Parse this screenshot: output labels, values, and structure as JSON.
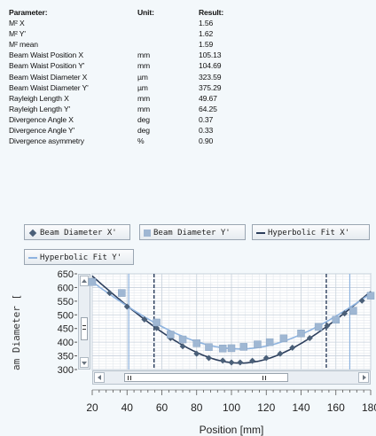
{
  "results_table": {
    "headers": {
      "parameter": "Parameter:",
      "unit": "Unit:",
      "result": "Result:"
    },
    "rows": [
      {
        "parameter": "M² X",
        "unit": "",
        "result": "1.56"
      },
      {
        "parameter": "M² Y'",
        "unit": "",
        "result": "1.62"
      },
      {
        "parameter": "M² mean",
        "unit": "",
        "result": "1.59"
      },
      {
        "parameter": "Beam Waist Position X",
        "unit": "mm",
        "result": "105.13"
      },
      {
        "parameter": "Beam Waist Position Y'",
        "unit": "mm",
        "result": "104.69"
      },
      {
        "parameter": "Beam Waist Diameter X",
        "unit": "µm",
        "result": "323.59"
      },
      {
        "parameter": "Beam Waist Diameter Y'",
        "unit": "µm",
        "result": "375.29"
      },
      {
        "parameter": "Rayleigh Length X",
        "unit": "mm",
        "result": "49.67"
      },
      {
        "parameter": "Rayleigh Length Y'",
        "unit": "mm",
        "result": "64.25"
      },
      {
        "parameter": "Divergence Angle X",
        "unit": "deg",
        "result": "0.37"
      },
      {
        "parameter": "Divergence Angle Y'",
        "unit": "deg",
        "result": "0.33"
      },
      {
        "parameter": "Divergence asymmetry",
        "unit": "%",
        "result": "0.90"
      }
    ]
  },
  "legend": {
    "beam_x": "Beam Diameter X'",
    "beam_y": "Beam Diameter Y'",
    "fit_x": "Hyperbolic Fit X'",
    "fit_y": "Hyperbolic Fit Y'"
  },
  "chart_data": {
    "type": "scatter",
    "xlabel": "Position [mm]",
    "ylabel": "am Diameter [",
    "xlim": [
      20,
      180
    ],
    "ylim": [
      300,
      650
    ],
    "x_ticks": [
      20,
      40,
      60,
      80,
      100,
      120,
      140,
      160,
      180
    ],
    "y_ticks": [
      300,
      350,
      400,
      450,
      500,
      550,
      600,
      650
    ],
    "grid": true,
    "legend_position": "top",
    "series": [
      {
        "name": "Beam Diameter X'",
        "marker": "diamond",
        "color": "#4a5f78",
        "x": [
          20,
          30,
          40,
          50,
          57,
          65,
          72,
          80,
          87,
          95,
          100,
          105,
          112,
          120,
          128,
          135,
          145,
          155,
          165,
          175,
          180
        ],
        "y": [
          625,
          580,
          530,
          483,
          452,
          415,
          385,
          358,
          342,
          333,
          326,
          326,
          332,
          342,
          358,
          380,
          415,
          460,
          505,
          552,
          575
        ]
      },
      {
        "name": "Beam Diameter Y'",
        "marker": "square",
        "color": "#9fb7d3",
        "x": [
          20,
          37,
          57,
          65,
          72,
          80,
          87,
          95,
          100,
          107,
          115,
          122,
          130,
          140,
          150,
          160,
          170,
          180
        ],
        "y": [
          620,
          580,
          472,
          428,
          410,
          396,
          382,
          377,
          378,
          383,
          392,
          400,
          414,
          432,
          456,
          482,
          515,
          570
        ]
      }
    ],
    "fits": [
      {
        "name": "Hyperbolic Fit X'",
        "color": "#2c3e5c",
        "w0": 323.59,
        "z0": 105.13,
        "zr": 49.67
      },
      {
        "name": "Hyperbolic Fit Y'",
        "color": "#8fb4e0",
        "w0": 375.29,
        "z0": 104.69,
        "zr": 64.25
      }
    ],
    "markers": {
      "dark_dashed_x": [
        55.5,
        154.5
      ],
      "light_solid_x": [
        41,
        168
      ]
    }
  },
  "colors": {
    "accent_dark": "#2c3e5c",
    "accent_light": "#8fb4e0",
    "grid": "#c8d2dc"
  }
}
